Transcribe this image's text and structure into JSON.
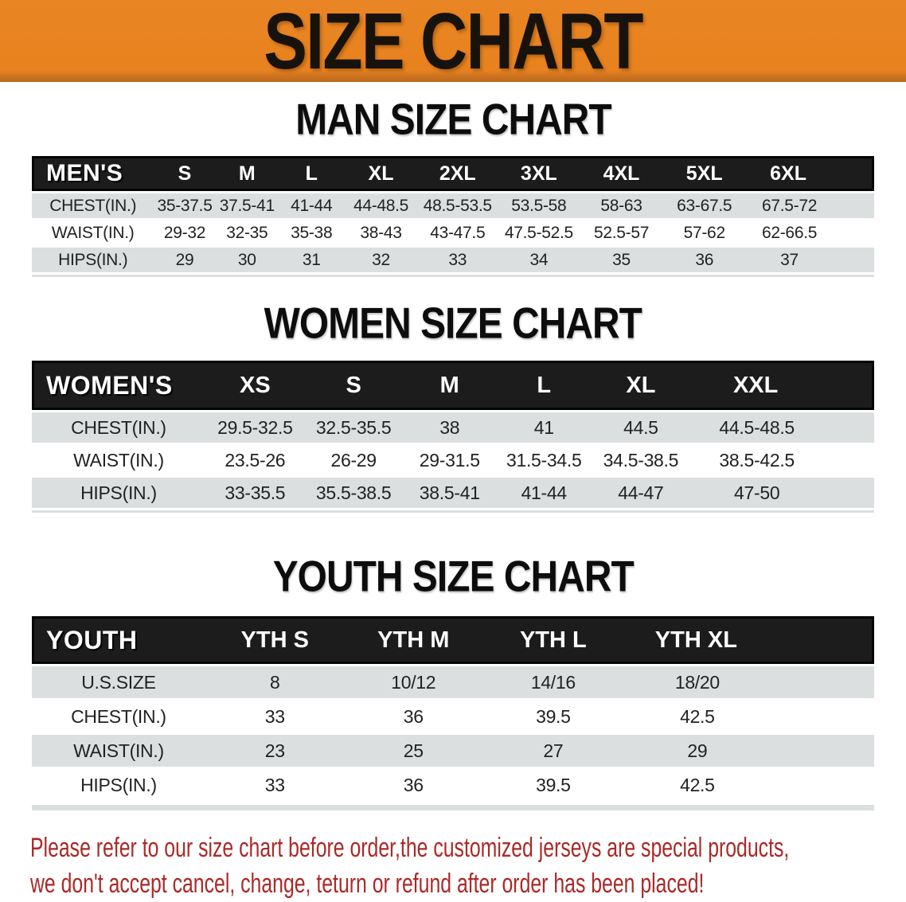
{
  "banner": {
    "title": "SIZE CHART"
  },
  "sections": [
    {
      "title": "MAN SIZE CHART",
      "corner_label": "MEN'S",
      "columns": [
        "S",
        "M",
        "L",
        "XL",
        "2XL",
        "3XL",
        "4XL",
        "5XL",
        "6XL"
      ],
      "rows": [
        {
          "label": "CHEST(IN.)",
          "values": [
            "35-37.5",
            "37.5-41",
            "41-44",
            "44-48.5",
            "48.5-53.5",
            "53.5-58",
            "58-63",
            "63-67.5",
            "67.5-72"
          ]
        },
        {
          "label": "WAIST(IN.)",
          "values": [
            "29-32",
            "32-35",
            "35-38",
            "38-43",
            "43-47.5",
            "47.5-52.5",
            "52.5-57",
            "57-62",
            "62-66.5"
          ]
        },
        {
          "label": "HIPS(IN.)",
          "values": [
            "29",
            "30",
            "31",
            "32",
            "33",
            "34",
            "35",
            "36",
            "37"
          ]
        }
      ]
    },
    {
      "title": "WOMEN SIZE CHART",
      "corner_label": "WOMEN'S",
      "columns": [
        "XS",
        "S",
        "M",
        "L",
        "XL",
        "XXL"
      ],
      "rows": [
        {
          "label": "CHEST(IN.)",
          "values": [
            "29.5-32.5",
            "32.5-35.5",
            "38",
            "41",
            "44.5",
            "44.5-48.5"
          ]
        },
        {
          "label": "WAIST(IN.)",
          "values": [
            "23.5-26",
            "26-29",
            "29-31.5",
            "31.5-34.5",
            "34.5-38.5",
            "38.5-42.5"
          ]
        },
        {
          "label": "HIPS(IN.)",
          "values": [
            "33-35.5",
            "35.5-38.5",
            "38.5-41",
            "41-44",
            "44-47",
            "47-50"
          ]
        }
      ]
    },
    {
      "title": "YOUTH SIZE CHART",
      "corner_label": "YOUTH",
      "columns": [
        "YTH S",
        "YTH M",
        "YTH L",
        "YTH XL"
      ],
      "rows": [
        {
          "label": "U.S.SIZE",
          "values": [
            "8",
            "10/12",
            "14/16",
            "18/20"
          ]
        },
        {
          "label": "CHEST(IN.)",
          "values": [
            "33",
            "36",
            "39.5",
            "42.5"
          ]
        },
        {
          "label": "WAIST(IN.)",
          "values": [
            "23",
            "25",
            "27",
            "29"
          ]
        },
        {
          "label": "HIPS(IN.)",
          "values": [
            "33",
            "36",
            "39.5",
            "42.5"
          ]
        }
      ]
    }
  ],
  "disclaimer": {
    "line1": "Please refer to our size chart before order,the customized jerseys are special products,",
    "line2": "we don't accept cancel, change, teturn or refund after order has been placed!"
  },
  "colors": {
    "banner_orange": "#e8821e",
    "header_black": "#1c1c1c",
    "row_gray": "#dcdfe0",
    "disclaimer_red": "#a92a28",
    "title_black": "#0d0d0d"
  }
}
